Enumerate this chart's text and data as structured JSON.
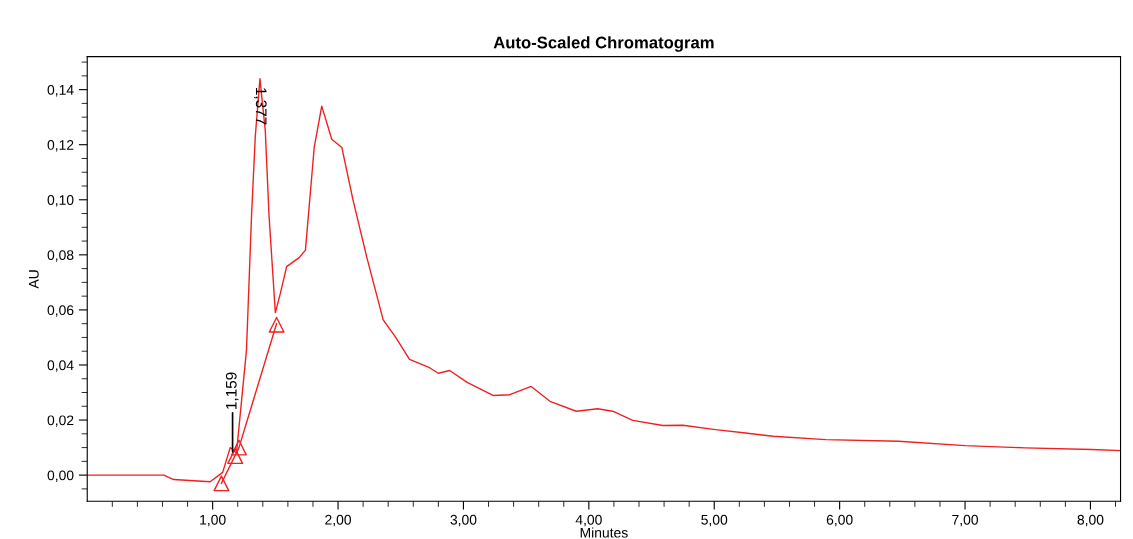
{
  "chart_data": {
    "type": "line",
    "title": "Auto-Scaled Chromatogram",
    "xlabel": "Minutes",
    "ylabel": "AU",
    "xlim": [
      0,
      8.24
    ],
    "ylim": [
      -0.0095,
      0.152
    ],
    "xticks": [
      {
        "value": 0.2,
        "label": null
      },
      {
        "value": 0.4,
        "label": null
      },
      {
        "value": 0.6,
        "label": null
      },
      {
        "value": 0.8,
        "label": null
      },
      {
        "value": 1,
        "label": "1,00"
      },
      {
        "value": 1.2,
        "label": null
      },
      {
        "value": 1.4,
        "label": null
      },
      {
        "value": 1.6,
        "label": null
      },
      {
        "value": 1.8,
        "label": null
      },
      {
        "value": 2,
        "label": "2,00"
      },
      {
        "value": 2.2,
        "label": null
      },
      {
        "value": 2.4,
        "label": null
      },
      {
        "value": 2.6,
        "label": null
      },
      {
        "value": 2.8,
        "label": null
      },
      {
        "value": 3,
        "label": "3,00"
      },
      {
        "value": 3.2,
        "label": null
      },
      {
        "value": 3.4,
        "label": null
      },
      {
        "value": 3.6,
        "label": null
      },
      {
        "value": 3.8,
        "label": null
      },
      {
        "value": 4,
        "label": "4,00"
      },
      {
        "value": 4.2,
        "label": null
      },
      {
        "value": 4.4,
        "label": null
      },
      {
        "value": 4.6,
        "label": null
      },
      {
        "value": 4.8,
        "label": null
      },
      {
        "value": 5,
        "label": "5,00"
      },
      {
        "value": 5.2,
        "label": null
      },
      {
        "value": 5.4,
        "label": null
      },
      {
        "value": 5.6,
        "label": null
      },
      {
        "value": 5.8,
        "label": null
      },
      {
        "value": 6,
        "label": "6,00"
      },
      {
        "value": 6.2,
        "label": null
      },
      {
        "value": 6.4,
        "label": null
      },
      {
        "value": 6.6,
        "label": null
      },
      {
        "value": 6.8,
        "label": null
      },
      {
        "value": 7,
        "label": "7,00"
      },
      {
        "value": 7.2,
        "label": null
      },
      {
        "value": 7.4,
        "label": null
      },
      {
        "value": 7.6,
        "label": null
      },
      {
        "value": 7.8,
        "label": null
      },
      {
        "value": 8,
        "label": "8,00"
      },
      {
        "value": 8.2,
        "label": null
      }
    ],
    "yticks": [
      {
        "value": -0.005,
        "label": null
      },
      {
        "value": 0,
        "label": "0,00"
      },
      {
        "value": 0.005,
        "label": null
      },
      {
        "value": 0.01,
        "label": null
      },
      {
        "value": 0.015,
        "label": null
      },
      {
        "value": 0.02,
        "label": "0,02"
      },
      {
        "value": 0.025,
        "label": null
      },
      {
        "value": 0.03,
        "label": null
      },
      {
        "value": 0.035,
        "label": null
      },
      {
        "value": 0.04,
        "label": "0,04"
      },
      {
        "value": 0.045,
        "label": null
      },
      {
        "value": 0.05,
        "label": null
      },
      {
        "value": 0.055,
        "label": null
      },
      {
        "value": 0.06,
        "label": "0,06"
      },
      {
        "value": 0.065,
        "label": null
      },
      {
        "value": 0.07,
        "label": null
      },
      {
        "value": 0.075,
        "label": null
      },
      {
        "value": 0.08,
        "label": "0,08"
      },
      {
        "value": 0.085,
        "label": null
      },
      {
        "value": 0.09,
        "label": null
      },
      {
        "value": 0.095,
        "label": null
      },
      {
        "value": 0.1,
        "label": "0,10"
      },
      {
        "value": 0.105,
        "label": null
      },
      {
        "value": 0.11,
        "label": null
      },
      {
        "value": 0.115,
        "label": null
      },
      {
        "value": 0.12,
        "label": "0,12"
      },
      {
        "value": 0.125,
        "label": null
      },
      {
        "value": 0.13,
        "label": null
      },
      {
        "value": 0.135,
        "label": null
      },
      {
        "value": 0.14,
        "label": "0,14"
      },
      {
        "value": 0.145,
        "label": null
      },
      {
        "value": 0.15,
        "label": null
      }
    ],
    "grid": false,
    "series": [
      {
        "color": "#f02020",
        "marker": "none",
        "x": [
          0,
          0.61,
          0.69,
          0.98,
          1.08,
          1.14,
          1.19,
          1.27,
          1.31,
          1.34,
          1.377,
          1.42,
          1.45,
          1.5,
          1.54,
          1.59,
          1.69,
          1.74,
          1.81,
          1.87,
          1.95,
          2.03,
          2.12,
          2.23,
          2.36,
          2.46,
          2.57,
          2.73,
          2.8,
          2.89,
          3.03,
          3.24,
          3.37,
          3.54,
          3.69,
          3.9,
          4.07,
          4.19,
          4.35,
          4.59,
          4.75,
          5.01,
          5.25,
          5.47,
          5.89,
          6.47,
          7.0,
          7.48,
          8.01,
          8.24
        ],
        "values": [
          0,
          0,
          -0.0016,
          -0.0024,
          0.001,
          0.01,
          0.008,
          0.0455,
          0.094,
          0.123,
          0.144,
          0.125,
          0.094,
          0.059,
          0.066,
          0.0757,
          0.079,
          0.0817,
          0.119,
          0.134,
          0.122,
          0.119,
          0.0998,
          0.079,
          0.0564,
          0.05,
          0.042,
          0.039,
          0.037,
          0.038,
          0.0337,
          0.0289,
          0.0292,
          0.0322,
          0.0268,
          0.0232,
          0.0241,
          0.0232,
          0.0199,
          0.018,
          0.0181,
          0.0165,
          0.0153,
          0.0141,
          0.0129,
          0.0123,
          0.0107,
          0.0099,
          0.0093,
          0.0089
        ]
      },
      {
        "type": "line",
        "color": "#f02020",
        "marker": "none",
        "x": [
          1.07,
          1.21,
          1.51
        ],
        "values": [
          -0.003,
          0.01,
          0.055
        ]
      },
      {
        "type": "scatter",
        "color": "#f02020",
        "marker": "triangle",
        "x": [
          1.07,
          1.18,
          1.21,
          1.51
        ],
        "values": [
          -0.003,
          0.0069,
          0.01,
          0.0546
        ]
      }
    ],
    "annotations": [
      {
        "text": "1,159",
        "x": 1.159,
        "y": 0.0085
      },
      {
        "text": "1,377",
        "x": 1.377,
        "y": 0.144
      }
    ]
  }
}
